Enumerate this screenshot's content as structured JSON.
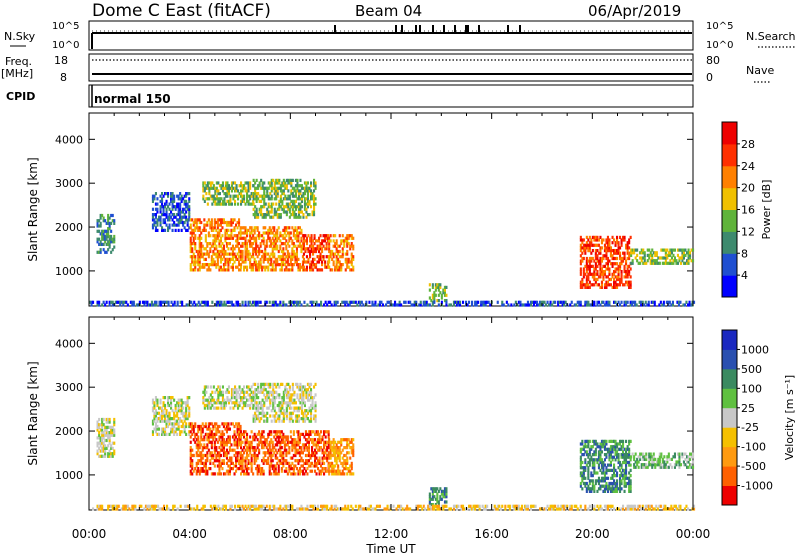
{
  "header": {
    "title": "Dome C East (fitACF)",
    "beam": "Beam 04",
    "date": "06/Apr/2019"
  },
  "status_panels": {
    "nsky_label": "N.Sky",
    "nsky_ticks": [
      "10^5",
      "10^0"
    ],
    "nsearch_label": "N.Search",
    "nsearch_ticks": [
      "10^5",
      "10^0"
    ],
    "freq_label": "Freq.",
    "freq_unit": "[MHz]",
    "freq_ticks": [
      "18",
      "8"
    ],
    "nave_label": "Nave",
    "nave_ticks": [
      "80",
      "0"
    ],
    "cpid_label": "CPID",
    "cpid_value": "normal 150"
  },
  "chart_data": [
    {
      "type": "heatmap",
      "name": "power-panel",
      "x": {
        "label": "",
        "range_hours": [
          0,
          24
        ],
        "tick_labels": [
          "00:00",
          "04:00",
          "08:00",
          "12:00",
          "16:00",
          "20:00",
          "00:00"
        ]
      },
      "y": {
        "label": "Slant Range [km]",
        "range": [
          200,
          4600
        ],
        "ticks": [
          1000,
          2000,
          3000,
          4000
        ]
      },
      "colorbar": {
        "label": "Power [dB]",
        "ticks": [
          "4",
          "8",
          "12",
          "16",
          "20",
          "24",
          "28"
        ],
        "colors": [
          "#0000ff",
          "#1f4fd1",
          "#3d8a6e",
          "#5fb33a",
          "#f0c000",
          "#ff8000",
          "#ff3000",
          "#ee0000"
        ]
      },
      "patches": [
        {
          "t0": 0.3,
          "t1": 1.0,
          "r0": 1400,
          "r1": 2300,
          "level": 2
        },
        {
          "t0": 2.5,
          "t1": 4.0,
          "r0": 1900,
          "r1": 2800,
          "level": 1
        },
        {
          "t0": 4.0,
          "t1": 6.0,
          "r0": 1000,
          "r1": 2200,
          "level": 5
        },
        {
          "t0": 4.5,
          "t1": 6.5,
          "r0": 2500,
          "r1": 3000,
          "level": 3
        },
        {
          "t0": 6.0,
          "t1": 8.5,
          "r0": 1000,
          "r1": 2000,
          "level": 5
        },
        {
          "t0": 6.5,
          "t1": 9.0,
          "r0": 2200,
          "r1": 3100,
          "level": 3
        },
        {
          "t0": 8.5,
          "t1": 9.5,
          "r0": 1000,
          "r1": 1800,
          "level": 6
        },
        {
          "t0": 9.5,
          "t1": 10.5,
          "r0": 1000,
          "r1": 1800,
          "level": 5
        },
        {
          "t0": 19.5,
          "t1": 21.5,
          "r0": 600,
          "r1": 1800,
          "level": 6
        },
        {
          "t0": 21.5,
          "t1": 24.0,
          "r0": 1150,
          "r1": 1500,
          "level": 3
        },
        {
          "t0": 13.5,
          "t1": 14.2,
          "r0": 300,
          "r1": 700,
          "level": 3
        },
        {
          "t0": 0.0,
          "t1": 24.0,
          "r0": 200,
          "r1": 320,
          "level": 1
        }
      ]
    },
    {
      "type": "heatmap",
      "name": "velocity-panel",
      "x": {
        "label": "Time UT",
        "range_hours": [
          0,
          24
        ],
        "tick_labels": [
          "00:00",
          "04:00",
          "08:00",
          "12:00",
          "16:00",
          "20:00",
          "00:00"
        ]
      },
      "y": {
        "label": "Slant Range [km]",
        "range": [
          200,
          4600
        ],
        "ticks": [
          1000,
          2000,
          3000,
          4000
        ]
      },
      "colorbar": {
        "label": "Velocity [m s⁻¹]",
        "ticks": [
          "-1000",
          "-500",
          "-100",
          "-25",
          "25",
          "100",
          "500",
          "1000"
        ],
        "colors": [
          "#ee0000",
          "#ff6000",
          "#ff9a10",
          "#f5c000",
          "#c8c8c8",
          "#5fc040",
          "#3a8a60",
          "#2a50b0",
          "#1a28c0"
        ]
      },
      "patches": [
        {
          "t0": 0.3,
          "t1": 1.0,
          "r0": 1400,
          "r1": 2300,
          "level": 4
        },
        {
          "t0": 2.5,
          "t1": 4.0,
          "r0": 1900,
          "r1": 2800,
          "level": 4
        },
        {
          "t0": 4.0,
          "t1": 6.0,
          "r0": 1000,
          "r1": 2200,
          "level": 1
        },
        {
          "t0": 4.5,
          "t1": 6.5,
          "r0": 2500,
          "r1": 3000,
          "level": 4
        },
        {
          "t0": 6.0,
          "t1": 9.5,
          "r0": 1000,
          "r1": 2000,
          "level": 1
        },
        {
          "t0": 6.5,
          "t1": 9.0,
          "r0": 2200,
          "r1": 3100,
          "level": 4
        },
        {
          "t0": 9.5,
          "t1": 10.5,
          "r0": 1000,
          "r1": 1800,
          "level": 2
        },
        {
          "t0": 19.5,
          "t1": 21.5,
          "r0": 600,
          "r1": 1800,
          "level": 6
        },
        {
          "t0": 21.5,
          "t1": 24.0,
          "r0": 1150,
          "r1": 1500,
          "level": 5
        },
        {
          "t0": 13.5,
          "t1": 14.2,
          "r0": 300,
          "r1": 700,
          "level": 6
        },
        {
          "t0": 0.0,
          "t1": 24.0,
          "r0": 200,
          "r1": 320,
          "level": 3
        }
      ]
    }
  ]
}
